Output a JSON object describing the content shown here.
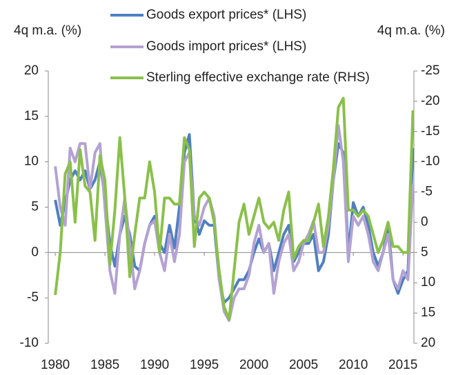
{
  "chart_data": {
    "type": "line",
    "y_label": "4q m.a. (%)",
    "y2_label": "4q m.a. (%)",
    "x": [
      1980,
      1980.5,
      1981,
      1981.5,
      1982,
      1982.5,
      1983,
      1983.5,
      1984,
      1984.5,
      1985,
      1985.5,
      1986,
      1986.5,
      1987,
      1987.5,
      1988,
      1988.5,
      1989,
      1989.5,
      1990,
      1990.5,
      1991,
      1991.5,
      1992,
      1992.5,
      1993,
      1993.5,
      1994,
      1994.5,
      1995,
      1995.5,
      1996,
      1996.5,
      1997,
      1997.5,
      1998,
      1998.5,
      1999,
      1999.5,
      2000,
      2000.5,
      2001,
      2001.5,
      2002,
      2002.5,
      2003,
      2003.5,
      2004,
      2004.5,
      2005,
      2005.5,
      2006,
      2006.5,
      2007,
      2007.5,
      2008,
      2008.5,
      2009,
      2009.5,
      2010,
      2010.5,
      2011,
      2011.5,
      2012,
      2012.5,
      2013,
      2013.5,
      2014,
      2014.5,
      2015,
      2015.5,
      2016
    ],
    "series": [
      {
        "name": "Goods export prices* (LHS)",
        "color": "#4f7fc2",
        "axis": "y",
        "values": [
          5.8,
          3,
          5.5,
          8,
          9,
          8,
          9,
          7,
          8,
          10,
          6,
          1,
          -1.5,
          2,
          4,
          2,
          -1.5,
          -2,
          1,
          3,
          4,
          1,
          0,
          3,
          0.5,
          5,
          11,
          13,
          4,
          2,
          3.5,
          3,
          3,
          -3,
          -5.5,
          -5,
          -4,
          -3,
          -3,
          -2,
          0,
          1.5,
          0,
          1,
          -2,
          0,
          2,
          3,
          -1,
          0,
          1,
          1,
          2,
          -2,
          -1,
          2,
          8,
          12,
          11,
          0,
          5.5,
          4,
          5,
          3,
          0,
          -1.5,
          0,
          3,
          -3,
          -4.5,
          -3,
          -2,
          11.5
        ]
      },
      {
        "name": "Goods import prices* (LHS)",
        "color": "#b3a2d2",
        "axis": "y",
        "values": [
          9.5,
          5,
          3,
          11.5,
          10,
          12,
          12,
          7,
          11,
          12,
          5,
          -2,
          -4.5,
          2,
          6,
          1,
          -4,
          -2,
          1,
          3,
          3.5,
          0,
          -2,
          2,
          -1,
          2,
          10,
          11,
          4,
          3,
          5,
          6,
          4,
          -3,
          -6.5,
          -7.5,
          -5,
          -4,
          -4,
          -2.5,
          1,
          3,
          0,
          1,
          -4.5,
          -1,
          1,
          2,
          -2,
          -1,
          1,
          2,
          3.5,
          0,
          0,
          3,
          8,
          14,
          10,
          -1,
          4,
          3,
          4,
          2,
          -1,
          -2,
          0,
          2,
          -3,
          -4,
          -2,
          -3,
          7.5
        ]
      },
      {
        "name": "Sterling effective exchange rate (RHS)",
        "color": "#8ac04a",
        "axis": "y2",
        "values": [
          12,
          5,
          -8,
          -10,
          0,
          -12,
          -6,
          -5,
          3,
          -11,
          -7,
          7,
          -2,
          -14,
          -4,
          9,
          2,
          -4,
          -4,
          -10,
          -5,
          5,
          -4,
          -4,
          -3,
          -3,
          -14,
          -12,
          4,
          -4,
          -5,
          -4,
          0,
          8,
          14,
          16,
          8,
          0,
          -3,
          2,
          -1,
          -4,
          0,
          1,
          0,
          3,
          -2,
          -5,
          6,
          4,
          3,
          3,
          0,
          -3,
          4,
          -1,
          -9,
          -19,
          -20.5,
          -2,
          -2,
          -1,
          -2,
          -1,
          2,
          5,
          3,
          0,
          4,
          4,
          5,
          5,
          -18.5
        ]
      }
    ],
    "xlim": [
      1979.3,
      2016.1
    ],
    "xticks": [
      1980,
      1985,
      1990,
      1995,
      2000,
      2005,
      2010,
      2015
    ],
    "ylim": [
      -10,
      20
    ],
    "yticks": [
      -10,
      -5,
      0,
      5,
      10,
      15,
      20
    ],
    "y2lim": [
      20,
      -25
    ],
    "y2ticks": [
      -25,
      -20,
      -15,
      -10,
      -5,
      0,
      5,
      10,
      15,
      20
    ]
  }
}
